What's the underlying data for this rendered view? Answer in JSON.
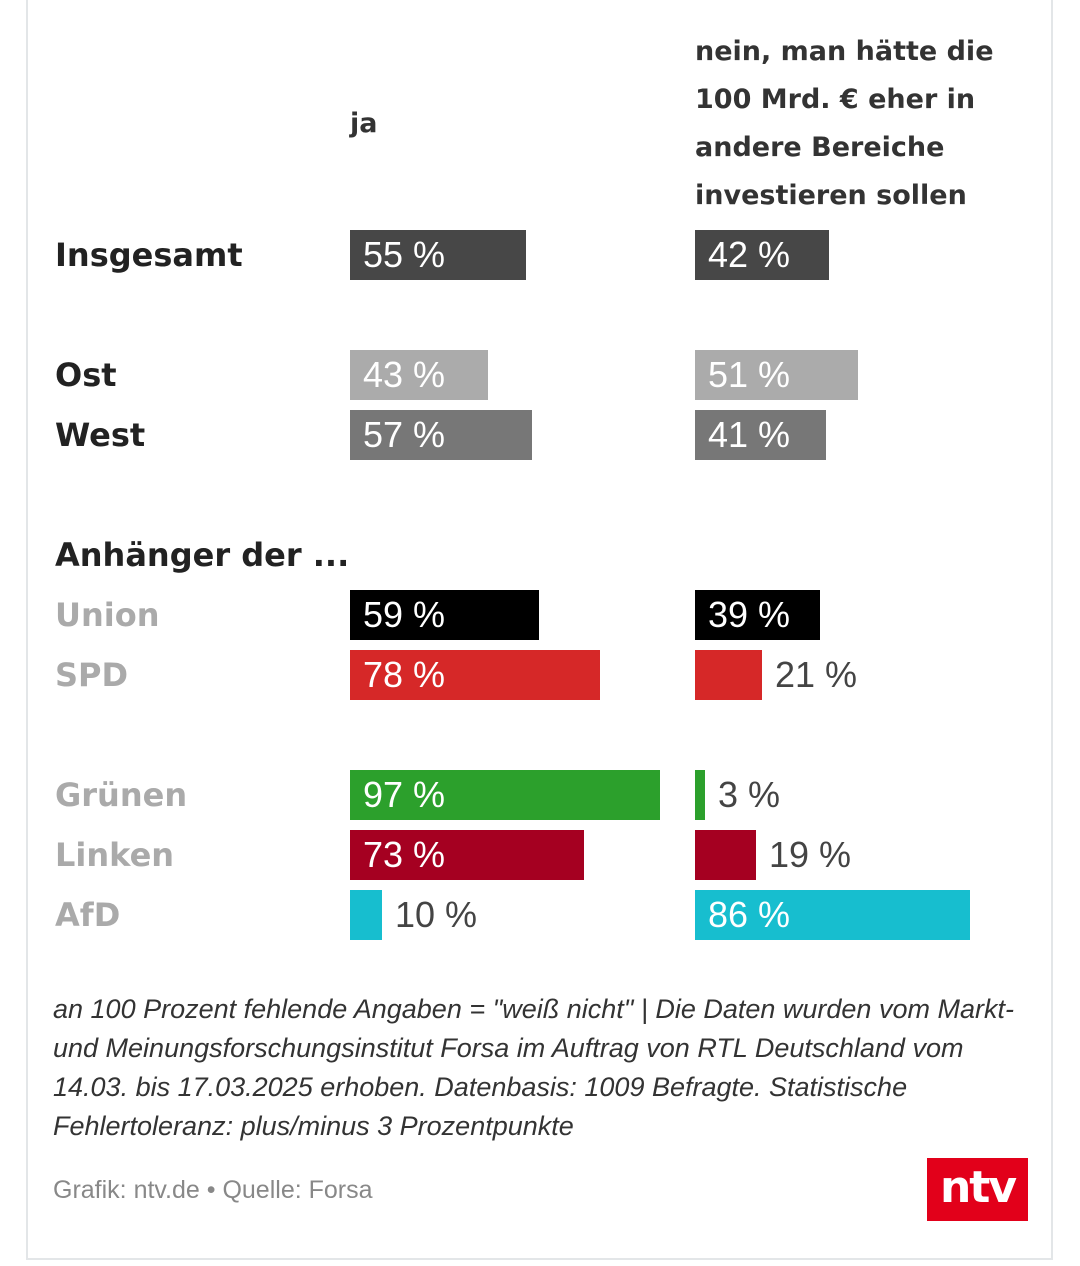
{
  "chart_data": {
    "type": "bar",
    "orientation": "horizontal",
    "columns": [
      "ja",
      "nein, man hätte die 100 Mrd. € eher in andere Bereiche investieren sollen"
    ],
    "groups": [
      {
        "label": "",
        "rows": [
          {
            "label": "Insgesamt",
            "ja": 55,
            "nein": 42,
            "color": "#474747"
          }
        ]
      },
      {
        "label": "",
        "rows": [
          {
            "label": "Ost",
            "ja": 43,
            "nein": 51,
            "color": "#ababab"
          },
          {
            "label": "West",
            "ja": 57,
            "nein": 41,
            "color": "#777777"
          }
        ]
      },
      {
        "label": "Anhänger der ...",
        "rows": [
          {
            "label": "Union",
            "ja": 59,
            "nein": 39,
            "color": "#000000"
          },
          {
            "label": "SPD",
            "ja": 78,
            "nein": 21,
            "color": "#d62828"
          }
        ]
      },
      {
        "label": "",
        "rows": [
          {
            "label": "Grünen",
            "ja": 97,
            "nein": 3,
            "color": "#2ca02c"
          },
          {
            "label": "Linken",
            "ja": 73,
            "nein": 19,
            "color": "#a50021"
          },
          {
            "label": "AfD",
            "ja": 10,
            "nein": 86,
            "color": "#17becf"
          }
        ]
      }
    ],
    "unit": "%",
    "xlim": [
      0,
      100
    ]
  },
  "column_headers": {
    "ja": "ja",
    "nein_lines": [
      "nein, man hätte die",
      "100 Mrd. € eher in",
      "andere Bereiche",
      "investieren sollen"
    ]
  },
  "note": "an 100 Prozent fehlende Angaben = \"weiß nicht\" | Die Daten wurden vom Markt- und Meinungsforschungsinstitut Forsa im Auftrag von RTL Deutschland vom 14.03. bis 17.03.2025 erhoben. Datenbasis: 1009 Befragte. Statistische Fehlertoleranz: plus/minus 3 Prozentpunkte",
  "credit": "Grafik: ntv.de • Quelle: Forsa",
  "logo_text": "ntv"
}
